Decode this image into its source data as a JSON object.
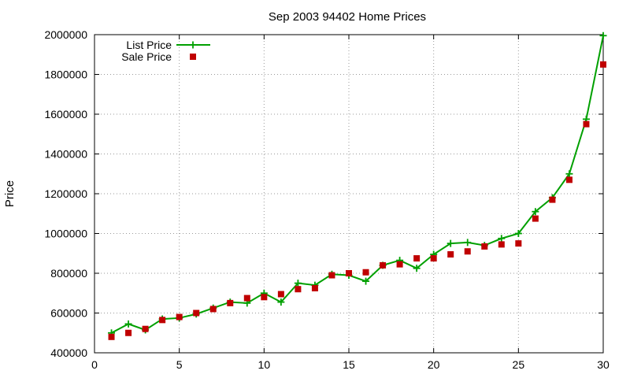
{
  "chart_data": {
    "type": "line",
    "title": "Sep 2003 94402 Home Prices",
    "xlabel": "",
    "ylabel": "Price",
    "xlim": [
      0,
      30
    ],
    "ylim": [
      400000,
      2000000
    ],
    "x_ticks": [
      0,
      5,
      10,
      15,
      20,
      25,
      30
    ],
    "x_tick_labels": [
      "0",
      "5",
      "10",
      "15",
      "20",
      "25",
      "30"
    ],
    "y_ticks": [
      400000,
      600000,
      800000,
      1000000,
      1200000,
      1400000,
      1600000,
      1800000,
      2000000
    ],
    "y_tick_labels": [
      "400000",
      "600000",
      "800000",
      "1000000",
      "1200000",
      "1400000",
      "1600000",
      "1800000",
      "2000000"
    ],
    "grid": true,
    "legend_position": "top-left",
    "x": [
      1,
      2,
      3,
      4,
      5,
      6,
      7,
      8,
      9,
      10,
      11,
      12,
      13,
      14,
      15,
      16,
      17,
      18,
      19,
      20,
      21,
      22,
      23,
      24,
      25,
      26,
      27,
      28,
      29,
      30
    ],
    "series": [
      {
        "name": "List Price",
        "style": "linespoints",
        "marker": "plus",
        "color": "#00a000",
        "values": [
          500000,
          545000,
          515000,
          570000,
          575000,
          595000,
          625000,
          655000,
          650000,
          700000,
          655000,
          750000,
          740000,
          795000,
          790000,
          760000,
          840000,
          865000,
          825000,
          895000,
          950000,
          955000,
          940000,
          975000,
          1000000,
          1110000,
          1180000,
          1300000,
          1575000,
          1995000
        ]
      },
      {
        "name": "Sale Price",
        "style": "points",
        "marker": "square",
        "color": "#c00000",
        "values": [
          480000,
          500000,
          520000,
          565000,
          580000,
          600000,
          620000,
          650000,
          675000,
          680000,
          695000,
          720000,
          725000,
          790000,
          800000,
          805000,
          840000,
          845000,
          875000,
          875000,
          895000,
          910000,
          935000,
          945000,
          950000,
          1075000,
          1170000,
          1270000,
          1550000,
          1850000
        ]
      }
    ]
  }
}
